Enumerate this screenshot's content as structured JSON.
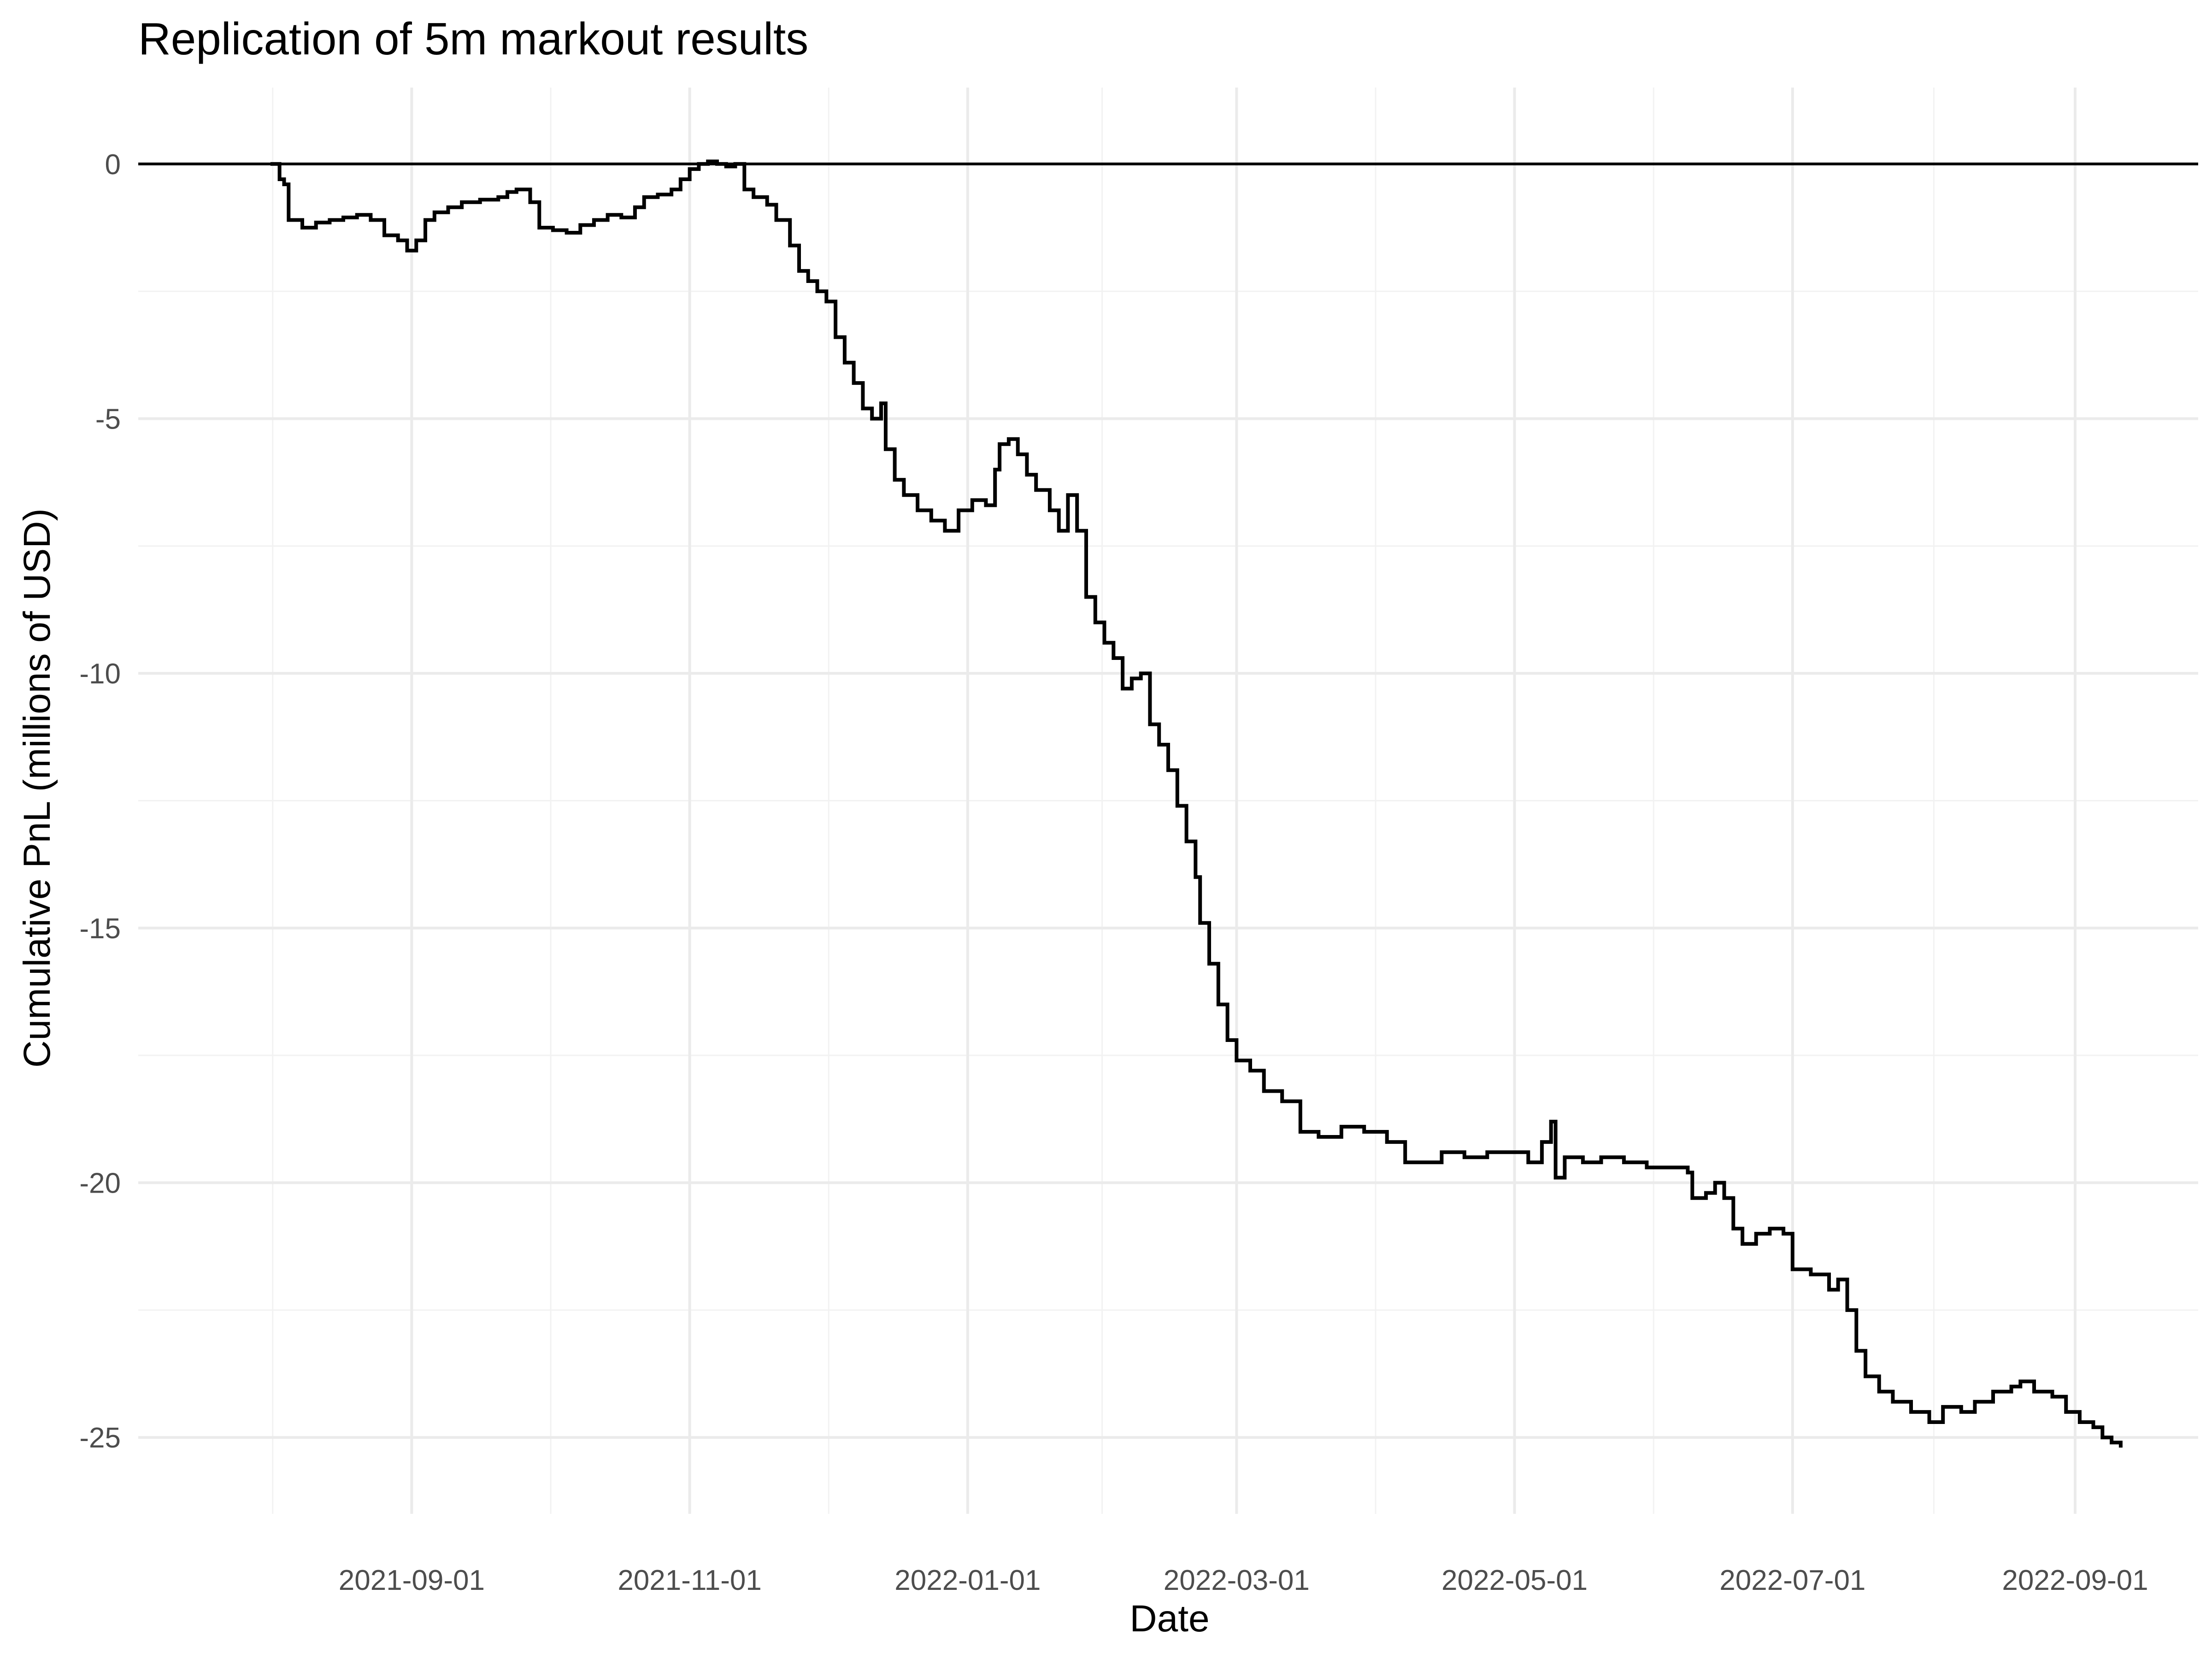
{
  "chart_data": {
    "type": "line",
    "title": "Replication of 5m markout results",
    "xlabel": "Date",
    "ylabel": "Cumulative PnL (millions of USD)",
    "x_ticks": [
      "2021-09-01",
      "2021-11-01",
      "2022-01-01",
      "2022-03-01",
      "2022-05-01",
      "2022-07-01",
      "2022-09-01"
    ],
    "y_ticks": [
      0,
      -5,
      -10,
      -15,
      -20,
      -25
    ],
    "xlim": [
      "2021-07-03",
      "2022-09-28"
    ],
    "ylim": [
      -26.5,
      1.5
    ],
    "reference_line": {
      "y": 0
    },
    "grid": true,
    "series": [
      {
        "color": "#000000",
        "points": [
          [
            "2021-08-01",
            0.0
          ],
          [
            "2021-08-03",
            -0.3
          ],
          [
            "2021-08-04",
            -0.4
          ],
          [
            "2021-08-05",
            -1.1
          ],
          [
            "2021-08-08",
            -1.25
          ],
          [
            "2021-08-11",
            -1.15
          ],
          [
            "2021-08-14",
            -1.1
          ],
          [
            "2021-08-17",
            -1.05
          ],
          [
            "2021-08-20",
            -1.0
          ],
          [
            "2021-08-23",
            -1.1
          ],
          [
            "2021-08-26",
            -1.4
          ],
          [
            "2021-08-29",
            -1.5
          ],
          [
            "2021-08-31",
            -1.7
          ],
          [
            "2021-09-02",
            -1.5
          ],
          [
            "2021-09-04",
            -1.1
          ],
          [
            "2021-09-06",
            -0.95
          ],
          [
            "2021-09-09",
            -0.85
          ],
          [
            "2021-09-12",
            -0.75
          ],
          [
            "2021-09-16",
            -0.7
          ],
          [
            "2021-09-20",
            -0.65
          ],
          [
            "2021-09-22",
            -0.55
          ],
          [
            "2021-09-24",
            -0.5
          ],
          [
            "2021-09-27",
            -0.75
          ],
          [
            "2021-09-29",
            -1.25
          ],
          [
            "2021-10-02",
            -1.3
          ],
          [
            "2021-10-05",
            -1.35
          ],
          [
            "2021-10-08",
            -1.2
          ],
          [
            "2021-10-11",
            -1.1
          ],
          [
            "2021-10-14",
            -1.0
          ],
          [
            "2021-10-17",
            -1.05
          ],
          [
            "2021-10-20",
            -0.85
          ],
          [
            "2021-10-22",
            -0.65
          ],
          [
            "2021-10-25",
            -0.6
          ],
          [
            "2021-10-28",
            -0.5
          ],
          [
            "2021-10-30",
            -0.3
          ],
          [
            "2021-11-01",
            -0.1
          ],
          [
            "2021-11-03",
            0.0
          ],
          [
            "2021-11-05",
            0.05
          ],
          [
            "2021-11-07",
            0.0
          ],
          [
            "2021-11-09",
            -0.05
          ],
          [
            "2021-11-11",
            0.0
          ],
          [
            "2021-11-13",
            -0.5
          ],
          [
            "2021-11-15",
            -0.65
          ],
          [
            "2021-11-18",
            -0.8
          ],
          [
            "2021-11-20",
            -1.1
          ],
          [
            "2021-11-23",
            -1.6
          ],
          [
            "2021-11-25",
            -2.1
          ],
          [
            "2021-11-27",
            -2.3
          ],
          [
            "2021-11-29",
            -2.5
          ],
          [
            "2021-12-01",
            -2.7
          ],
          [
            "2021-12-03",
            -3.4
          ],
          [
            "2021-12-05",
            -3.9
          ],
          [
            "2021-12-07",
            -4.3
          ],
          [
            "2021-12-09",
            -4.8
          ],
          [
            "2021-12-11",
            -5.0
          ],
          [
            "2021-12-13",
            -4.7
          ],
          [
            "2021-12-14",
            -5.6
          ],
          [
            "2021-12-16",
            -6.2
          ],
          [
            "2021-12-18",
            -6.5
          ],
          [
            "2021-12-21",
            -6.8
          ],
          [
            "2021-12-24",
            -7.0
          ],
          [
            "2021-12-27",
            -7.2
          ],
          [
            "2021-12-30",
            -6.8
          ],
          [
            "2022-01-02",
            -6.6
          ],
          [
            "2022-01-05",
            -6.7
          ],
          [
            "2022-01-07",
            -6.0
          ],
          [
            "2022-01-08",
            -5.5
          ],
          [
            "2022-01-10",
            -5.4
          ],
          [
            "2022-01-12",
            -5.7
          ],
          [
            "2022-01-14",
            -6.1
          ],
          [
            "2022-01-16",
            -6.4
          ],
          [
            "2022-01-19",
            -6.8
          ],
          [
            "2022-01-21",
            -7.2
          ],
          [
            "2022-01-23",
            -6.5
          ],
          [
            "2022-01-25",
            -7.2
          ],
          [
            "2022-01-27",
            -8.5
          ],
          [
            "2022-01-29",
            -9.0
          ],
          [
            "2022-01-31",
            -9.4
          ],
          [
            "2022-02-02",
            -9.7
          ],
          [
            "2022-02-04",
            -10.3
          ],
          [
            "2022-02-06",
            -10.1
          ],
          [
            "2022-02-08",
            -10.0
          ],
          [
            "2022-02-10",
            -11.0
          ],
          [
            "2022-02-12",
            -11.4
          ],
          [
            "2022-02-14",
            -11.9
          ],
          [
            "2022-02-16",
            -12.6
          ],
          [
            "2022-02-18",
            -13.3
          ],
          [
            "2022-02-20",
            -14.0
          ],
          [
            "2022-02-21",
            -14.9
          ],
          [
            "2022-02-23",
            -15.7
          ],
          [
            "2022-02-25",
            -16.5
          ],
          [
            "2022-02-27",
            -17.2
          ],
          [
            "2022-03-01",
            -17.6
          ],
          [
            "2022-03-04",
            -17.8
          ],
          [
            "2022-03-07",
            -18.2
          ],
          [
            "2022-03-11",
            -18.4
          ],
          [
            "2022-03-15",
            -19.0
          ],
          [
            "2022-03-19",
            -19.1
          ],
          [
            "2022-03-24",
            -18.9
          ],
          [
            "2022-03-29",
            -19.0
          ],
          [
            "2022-04-03",
            -19.2
          ],
          [
            "2022-04-07",
            -19.6
          ],
          [
            "2022-04-10",
            -19.6
          ],
          [
            "2022-04-15",
            -19.4
          ],
          [
            "2022-04-20",
            -19.5
          ],
          [
            "2022-04-25",
            -19.4
          ],
          [
            "2022-04-30",
            -19.4
          ],
          [
            "2022-05-04",
            -19.6
          ],
          [
            "2022-05-07",
            -19.2
          ],
          [
            "2022-05-09",
            -18.8
          ],
          [
            "2022-05-10",
            -19.9
          ],
          [
            "2022-05-12",
            -19.5
          ],
          [
            "2022-05-16",
            -19.6
          ],
          [
            "2022-05-20",
            -19.5
          ],
          [
            "2022-05-25",
            -19.6
          ],
          [
            "2022-05-30",
            -19.7
          ],
          [
            "2022-06-04",
            -19.7
          ],
          [
            "2022-06-08",
            -19.8
          ],
          [
            "2022-06-09",
            -20.3
          ],
          [
            "2022-06-12",
            -20.2
          ],
          [
            "2022-06-14",
            -20.0
          ],
          [
            "2022-06-16",
            -20.3
          ],
          [
            "2022-06-18",
            -20.9
          ],
          [
            "2022-06-20",
            -21.2
          ],
          [
            "2022-06-23",
            -21.0
          ],
          [
            "2022-06-26",
            -20.9
          ],
          [
            "2022-06-29",
            -21.0
          ],
          [
            "2022-07-01",
            -21.7
          ],
          [
            "2022-07-05",
            -21.8
          ],
          [
            "2022-07-09",
            -22.1
          ],
          [
            "2022-07-11",
            -21.9
          ],
          [
            "2022-07-13",
            -22.5
          ],
          [
            "2022-07-15",
            -23.3
          ],
          [
            "2022-07-17",
            -23.8
          ],
          [
            "2022-07-20",
            -24.1
          ],
          [
            "2022-07-23",
            -24.3
          ],
          [
            "2022-07-27",
            -24.5
          ],
          [
            "2022-07-31",
            -24.7
          ],
          [
            "2022-08-03",
            -24.4
          ],
          [
            "2022-08-07",
            -24.5
          ],
          [
            "2022-08-10",
            -24.3
          ],
          [
            "2022-08-14",
            -24.1
          ],
          [
            "2022-08-18",
            -24.0
          ],
          [
            "2022-08-20",
            -23.9
          ],
          [
            "2022-08-23",
            -24.1
          ],
          [
            "2022-08-27",
            -24.2
          ],
          [
            "2022-08-30",
            -24.5
          ],
          [
            "2022-09-02",
            -24.7
          ],
          [
            "2022-09-05",
            -24.8
          ],
          [
            "2022-09-07",
            -25.0
          ],
          [
            "2022-09-09",
            -25.1
          ],
          [
            "2022-09-11",
            -25.2
          ]
        ]
      }
    ]
  }
}
